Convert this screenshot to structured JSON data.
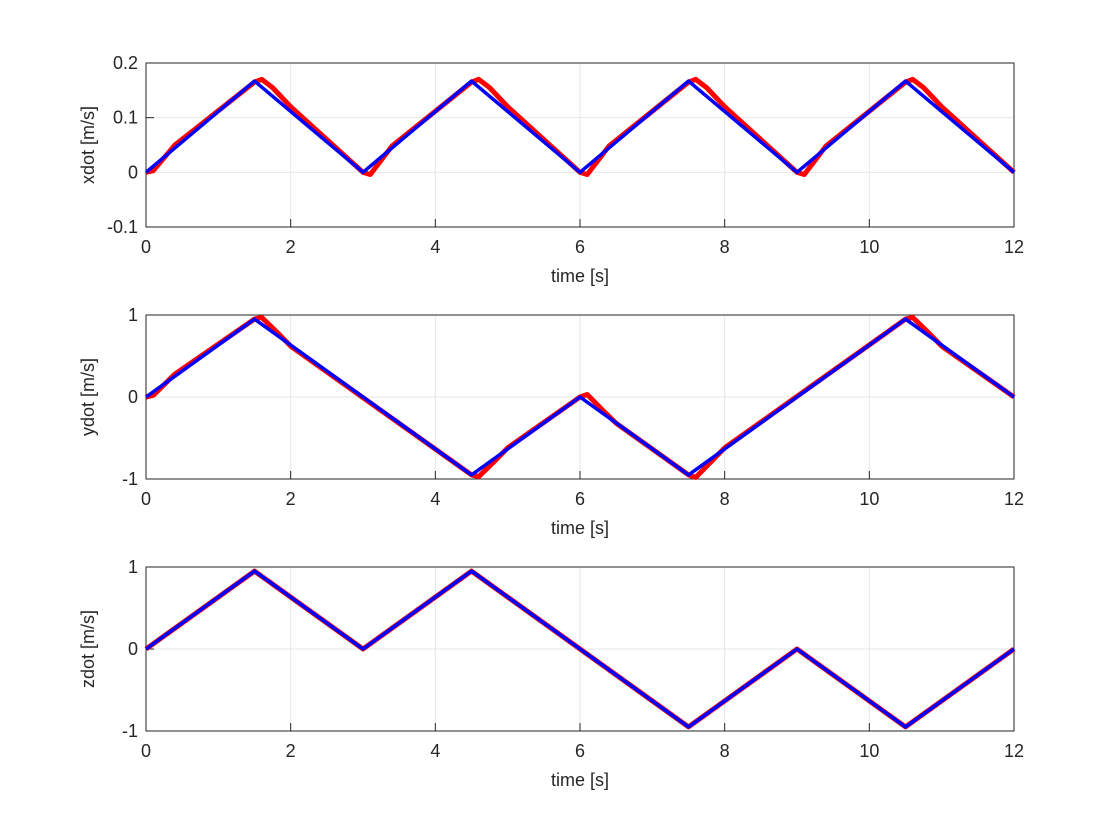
{
  "chart_data": [
    {
      "type": "line",
      "xlabel": "time [s]",
      "ylabel": "xdot [m/s]",
      "xlim": [
        0,
        12
      ],
      "xticks": [
        0,
        2,
        4,
        6,
        8,
        10,
        12
      ],
      "ylim": [
        -0.1,
        0.2
      ],
      "yticks": [
        -0.1,
        0,
        0.1,
        0.2
      ],
      "grid": true,
      "series": [
        {
          "color": "#ff0000",
          "x": [
            0,
            0.1,
            0.4,
            1.5,
            1.6,
            1.75,
            2.0,
            3.0,
            3.1,
            3.4,
            4.5,
            4.6,
            4.75,
            5.0,
            6.0,
            6.1,
            6.4,
            7.5,
            7.6,
            7.75,
            8.0,
            9.0,
            9.1,
            9.4,
            10.5,
            10.6,
            10.75,
            11.0,
            12
          ],
          "values": [
            0,
            0.003,
            0.05,
            0.165,
            0.17,
            0.155,
            0.12,
            0,
            -0.004,
            0.048,
            0.165,
            0.17,
            0.155,
            0.12,
            0,
            -0.004,
            0.048,
            0.165,
            0.17,
            0.155,
            0.12,
            0,
            -0.004,
            0.048,
            0.165,
            0.17,
            0.155,
            0.12,
            0
          ]
        },
        {
          "color": "#0000ff",
          "x": [
            0,
            1.5,
            3,
            4.5,
            6,
            7.5,
            9,
            10.5,
            12
          ],
          "values": [
            0,
            0.167,
            0,
            0.167,
            0,
            0.167,
            0,
            0.167,
            0
          ]
        }
      ]
    },
    {
      "type": "line",
      "xlabel": "time [s]",
      "ylabel": "ydot [m/s]",
      "xlim": [
        0,
        12
      ],
      "xticks": [
        0,
        2,
        4,
        6,
        8,
        10,
        12
      ],
      "ylim": [
        -1,
        1
      ],
      "yticks": [
        -1,
        0,
        1
      ],
      "grid": true,
      "series": [
        {
          "color": "#ff0000",
          "x": [
            0,
            0.1,
            0.4,
            1.5,
            1.6,
            1.8,
            2.0,
            4.5,
            4.6,
            4.8,
            5.0,
            6.0,
            6.1,
            6.3,
            6.5,
            7.5,
            7.6,
            7.8,
            8.0,
            10.5,
            10.6,
            10.8,
            11.0,
            12
          ],
          "values": [
            0,
            0.02,
            0.28,
            0.95,
            0.97,
            0.8,
            0.62,
            -0.95,
            -0.97,
            -0.8,
            -0.62,
            0,
            0.03,
            -0.15,
            -0.32,
            -0.95,
            -0.98,
            -0.8,
            -0.62,
            0.95,
            0.97,
            0.8,
            0.62,
            0
          ]
        },
        {
          "color": "#0000ff",
          "x": [
            0,
            1.5,
            4.5,
            6,
            7.5,
            10.5,
            12
          ],
          "values": [
            0,
            0.95,
            -0.95,
            0,
            -0.95,
            0.95,
            0
          ]
        }
      ]
    },
    {
      "type": "line",
      "xlabel": "time [s]",
      "ylabel": "zdot [m/s]",
      "xlim": [
        0,
        12
      ],
      "xticks": [
        0,
        2,
        4,
        6,
        8,
        10,
        12
      ],
      "ylim": [
        -1,
        1
      ],
      "yticks": [
        -1,
        0,
        1
      ],
      "grid": true,
      "series": [
        {
          "color": "#ff0000",
          "x": [
            0,
            1.5,
            3,
            4.5,
            7.5,
            9,
            10.5,
            12
          ],
          "values": [
            0,
            0.95,
            0,
            0.95,
            -0.95,
            0,
            -0.95,
            0
          ]
        },
        {
          "color": "#0000ff",
          "x": [
            0,
            1.5,
            3,
            4.5,
            7.5,
            9,
            10.5,
            12
          ],
          "values": [
            0,
            0.95,
            0,
            0.95,
            -0.95,
            0,
            -0.95,
            0
          ]
        }
      ]
    }
  ]
}
